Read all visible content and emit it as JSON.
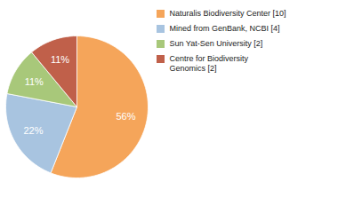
{
  "chart_data": {
    "type": "pie",
    "categories": [
      "Naturalis Biodiversity Center [10]",
      "Mined from GenBank, NCBI [4]",
      "Sun Yat-Sen University [2]",
      "Centre for Biodiversity\nGenomics [2]"
    ],
    "values": [
      56,
      22,
      11,
      11
    ],
    "value_labels": [
      "56%",
      "22%",
      "11%",
      "11%"
    ],
    "colors": [
      "#F5A55A",
      "#A8C4E0",
      "#A8C87A",
      "#C0604A"
    ],
    "data_labels": true,
    "legend": "right"
  }
}
